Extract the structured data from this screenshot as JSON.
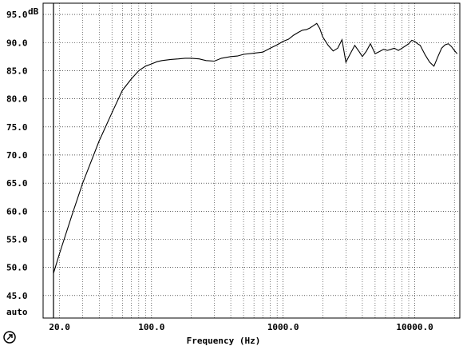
{
  "chart_data": {
    "type": "line",
    "ylabel": "dB",
    "xlabel": "Frequency (Hz)",
    "x_scale": "log",
    "xlim": [
      15,
      22000
    ],
    "ylim": [
      41,
      97
    ],
    "y_bottom_label": "auto",
    "y_ticks": [
      45.0,
      50.0,
      55.0,
      60.0,
      65.0,
      70.0,
      75.0,
      80.0,
      85.0,
      90.0,
      95.0
    ],
    "y_tick_labels": [
      "45.0",
      "50.0",
      "55.0",
      "60.0",
      "65.0",
      "70.0",
      "75.0",
      "80.0",
      "85.0",
      "90.0",
      "95.0"
    ],
    "x_ticks": [
      20,
      100,
      1000,
      10000
    ],
    "x_tick_labels": [
      "20.0",
      "100.0",
      "1000.0",
      "10000.0"
    ],
    "grid": true,
    "series": [
      {
        "x": [
          18,
          20,
          25,
          30,
          40,
          50,
          60,
          70,
          80,
          90,
          100,
          110,
          120,
          140,
          160,
          180,
          200,
          230,
          260,
          300,
          340,
          400,
          450,
          500,
          600,
          700,
          800,
          900,
          1000,
          1100,
          1200,
          1300,
          1400,
          1500,
          1600,
          1700,
          1800,
          1900,
          2000,
          2200,
          2400,
          2600,
          2800,
          3000,
          3200,
          3500,
          3800,
          4000,
          4300,
          4600,
          5000,
          5400,
          5800,
          6200,
          6600,
          7000,
          7500,
          8000,
          8500,
          9000,
          9500,
          10000,
          10500,
          11000,
          12000,
          13000,
          14000,
          15000,
          16000,
          17000,
          18000,
          19000,
          20000,
          21000
        ],
        "y": [
          49.0,
          52.5,
          59.5,
          65.0,
          72.5,
          77.5,
          81.5,
          83.5,
          85.0,
          85.8,
          86.2,
          86.6,
          86.8,
          87.0,
          87.1,
          87.2,
          87.2,
          87.1,
          86.8,
          86.7,
          87.2,
          87.5,
          87.6,
          87.9,
          88.1,
          88.3,
          89.0,
          89.6,
          90.2,
          90.6,
          91.3,
          91.8,
          92.2,
          92.3,
          92.6,
          93.0,
          93.4,
          92.5,
          91.0,
          89.5,
          88.5,
          89.0,
          90.5,
          86.5,
          87.8,
          89.5,
          88.3,
          87.5,
          88.5,
          89.8,
          88.0,
          88.4,
          88.8,
          88.6,
          88.8,
          89.0,
          88.6,
          89.0,
          89.4,
          89.8,
          90.4,
          90.2,
          89.8,
          89.5,
          87.8,
          86.5,
          85.8,
          87.5,
          89.0,
          89.6,
          89.8,
          89.3,
          88.6,
          88.0
        ]
      }
    ]
  }
}
